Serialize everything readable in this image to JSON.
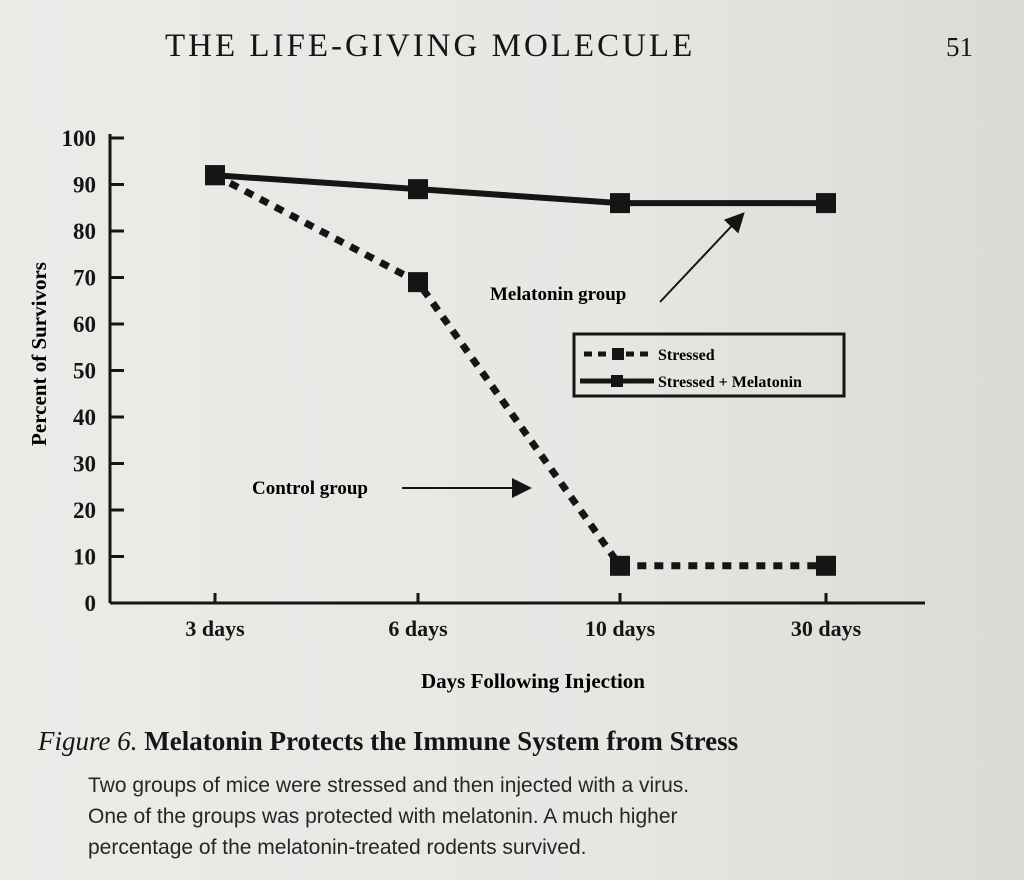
{
  "page": {
    "running_head": "THE LIFE-GIVING MOLECULE",
    "page_number": "51"
  },
  "figure": {
    "label": "Figure 6.",
    "title": "Melatonin Protects the Immune System from Stress",
    "caption_lines": [
      "Two groups of mice were stressed and then injected with a virus.",
      "One of the groups was protected with melatonin. A much higher",
      "percentage of the melatonin-treated rodents survived."
    ]
  },
  "chart_data": {
    "type": "line",
    "categories": [
      "3 days",
      "6 days",
      "10 days",
      "30 days"
    ],
    "xlabel": "Days Following Injection",
    "ylabel": "Percent of Survivors",
    "ylim": [
      0,
      100
    ],
    "yticks": [
      0,
      10,
      20,
      30,
      40,
      50,
      60,
      70,
      80,
      90,
      100
    ],
    "grid": false,
    "legend_position": "center-right",
    "series": [
      {
        "name": "Stressed",
        "style": "dashed",
        "values": [
          92,
          69,
          8,
          8
        ]
      },
      {
        "name": "Stressed + Melatonin",
        "style": "solid",
        "values": [
          92,
          89,
          86,
          86
        ]
      }
    ],
    "annotations": [
      {
        "text": "Melatonin group",
        "series": "Stressed + Melatonin"
      },
      {
        "text": "Control group",
        "series": "Stressed"
      }
    ],
    "colors": {
      "ink": "#151515"
    }
  }
}
